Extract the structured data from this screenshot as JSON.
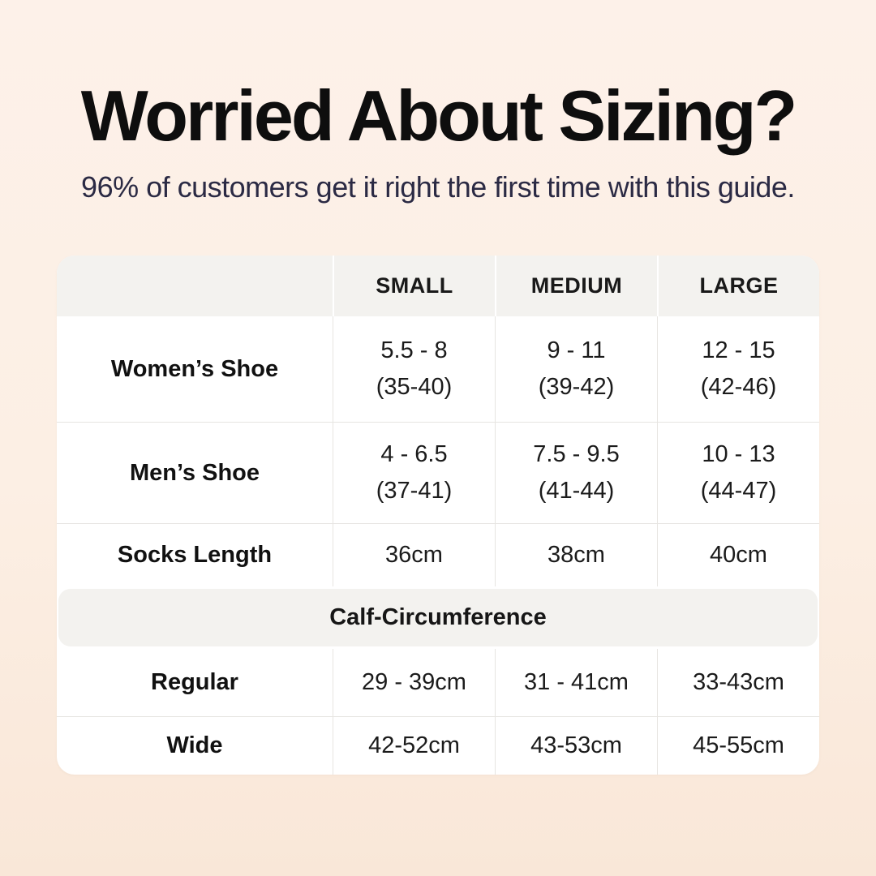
{
  "page": {
    "title": "Worried About Sizing?",
    "subtitle": "96% of customers get it right the first time with this guide."
  },
  "colors": {
    "background_top": "#fdf1e9",
    "background_bottom": "#f9e7d8",
    "title_text": "#0e0e0e",
    "subtitle_text": "#2b2a44",
    "table_background": "#ffffff",
    "band_background": "#f3f2ef",
    "grid_line": "#e7e5e2"
  },
  "table": {
    "headers": [
      "SMALL",
      "MEDIUM",
      "LARGE"
    ],
    "shoe_rows": [
      {
        "label": "Women’s Shoe",
        "cells": [
          {
            "us": "5.5 - 8",
            "eu": "(35-40)"
          },
          {
            "us": "9 - 11",
            "eu": "(39-42)"
          },
          {
            "us": "12 - 15",
            "eu": "(42-46)"
          }
        ]
      },
      {
        "label": "Men’s Shoe",
        "cells": [
          {
            "us": "4 - 6.5",
            "eu": "(37-41)"
          },
          {
            "us": "7.5 - 9.5",
            "eu": "(41-44)"
          },
          {
            "us": "10 - 13",
            "eu": "(44-47)"
          }
        ]
      }
    ],
    "socks_row": {
      "label": "Socks Length",
      "cells": [
        "36cm",
        "38cm",
        "40cm"
      ]
    },
    "section_header": "Calf-Circumference",
    "calf_rows": [
      {
        "label": "Regular",
        "cells": [
          "29 - 39cm",
          "31 - 41cm",
          "33-43cm"
        ]
      },
      {
        "label": "Wide",
        "cells": [
          "42-52cm",
          "43-53cm",
          "45-55cm"
        ]
      }
    ]
  },
  "chart_data": {
    "type": "table",
    "title": "Worried About Sizing?",
    "subtitle": "96% of customers get it right the first time with this guide.",
    "columns": [
      "",
      "SMALL",
      "MEDIUM",
      "LARGE"
    ],
    "rows": [
      [
        "Women’s Shoe",
        "5.5 - 8 (35-40)",
        "9 - 11 (39-42)",
        "12 - 15 (42-46)"
      ],
      [
        "Men’s Shoe",
        "4 - 6.5 (37-41)",
        "7.5 - 9.5 (41-44)",
        "10 - 13 (44-47)"
      ],
      [
        "Socks Length",
        "36cm",
        "38cm",
        "40cm"
      ],
      [
        "Calf-Circumference",
        "",
        "",
        ""
      ],
      [
        "Regular",
        "29 - 39cm",
        "31 - 41cm",
        "33-43cm"
      ],
      [
        "Wide",
        "42-52cm",
        "43-53cm",
        "45-55cm"
      ]
    ],
    "layout": {
      "grid": true,
      "section_band_after_row": 3,
      "header_row_shaded": true
    }
  }
}
